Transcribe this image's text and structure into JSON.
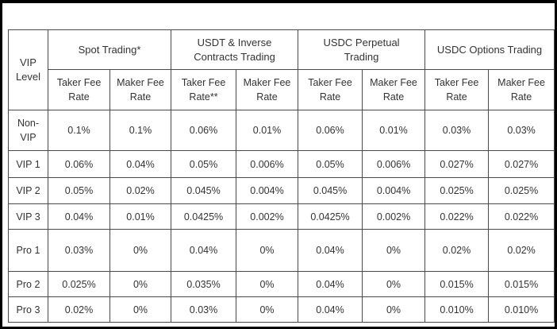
{
  "table": {
    "level_header": "VIP\nLevel",
    "groups": [
      "Spot Trading*",
      "USDT & Inverse\nContracts Trading",
      "USDC Perpetual\nTrading",
      "USDC Options Trading"
    ],
    "sub_headers": [
      "Taker Fee\nRate",
      "Maker Fee\nRate",
      "Taker Fee\nRate**",
      "Maker Fee\nRate",
      "Taker Fee\nRate",
      "Maker Fee\nRate",
      "Taker Fee\nRate",
      "Maker Fee\nRate"
    ],
    "rows": [
      {
        "level": "Non-\nVIP",
        "cells": [
          "0.1%",
          "0.1%",
          "0.06%",
          "0.01%",
          "0.06%",
          "0.01%",
          "0.03%",
          "0.03%"
        ]
      },
      {
        "level": "VIP 1",
        "cells": [
          "0.06%",
          "0.04%",
          "0.05%",
          "0.006%",
          "0.05%",
          "0.006%",
          "0.027%",
          "0.027%"
        ]
      },
      {
        "level": "VIP 2",
        "cells": [
          "0.05%",
          "0.02%",
          "0.045%",
          "0.004%",
          "0.045%",
          "0.004%",
          "0.025%",
          "0.025%"
        ]
      },
      {
        "level": "VIP 3",
        "cells": [
          "0.04%",
          "0.01%",
          "0.0425%",
          "0.002%",
          "0.0425%",
          "0.002%",
          "0.022%",
          "0.022%"
        ]
      },
      {
        "level": "Pro 1",
        "cells": [
          "0.03%",
          "0%",
          "0.04%",
          "0%",
          "0.04%",
          "0%",
          "0.02%",
          "0.02%"
        ]
      },
      {
        "level": "Pro 2",
        "cells": [
          "0.025%",
          "0%",
          "0.035%",
          "0%",
          "0.04%",
          "0%",
          "0.015%",
          "0.015%"
        ]
      },
      {
        "level": "Pro 3",
        "cells": [
          "0.02%",
          "0%",
          "0.03%",
          "0%",
          "0.04%",
          "0%",
          "0.010%",
          "0.010%"
        ]
      }
    ]
  }
}
